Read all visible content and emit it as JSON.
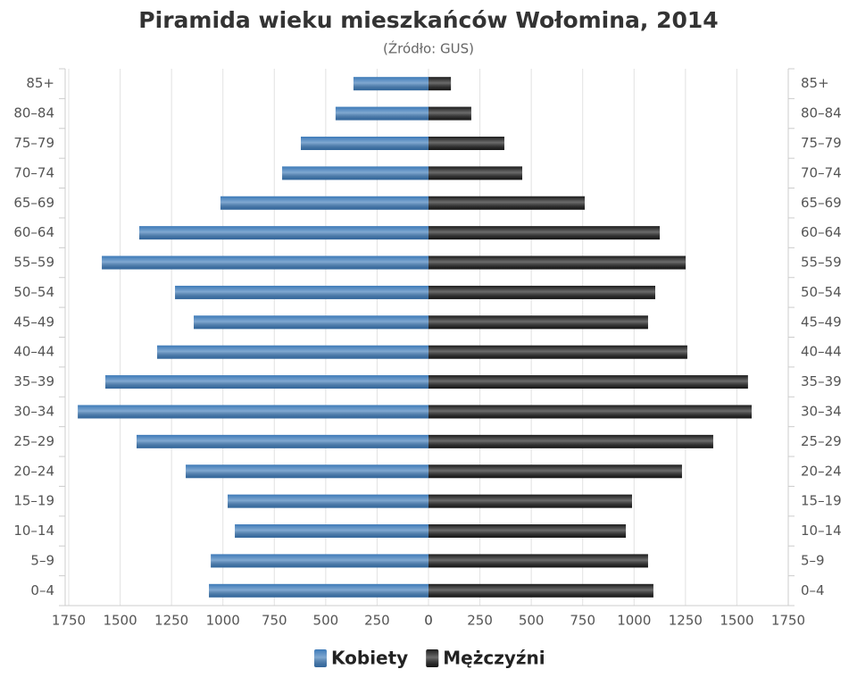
{
  "chart_data": {
    "type": "pyramid",
    "title": "Piramida wieku mieszkańców Wołomina, 2014",
    "subtitle": "(Źródło: GUS)",
    "categories": [
      "0–4",
      "5–9",
      "10–14",
      "15–19",
      "20–24",
      "25–29",
      "30–34",
      "35–39",
      "40–44",
      "45–49",
      "50–54",
      "55–59",
      "60–64",
      "65–69",
      "70–74",
      "75–79",
      "80–84",
      "85+"
    ],
    "series": [
      {
        "name": "Kobiety",
        "color": "#3d7ab8",
        "side": "left",
        "values": [
          1068,
          1059,
          942,
          977,
          1181,
          1420,
          1706,
          1572,
          1320,
          1142,
          1233,
          1589,
          1407,
          1012,
          712,
          621,
          452,
          365
        ]
      },
      {
        "name": "Mężczyźni",
        "color": "#1c1c1c",
        "side": "right",
        "values": [
          1094,
          1068,
          960,
          990,
          1233,
          1385,
          1572,
          1554,
          1259,
          1068,
          1103,
          1251,
          1125,
          760,
          456,
          369,
          208,
          109
        ]
      }
    ],
    "xlim": [
      0,
      1750
    ],
    "xticks": [
      0,
      250,
      500,
      750,
      1000,
      1250,
      1500,
      1750
    ],
    "grid": true
  }
}
